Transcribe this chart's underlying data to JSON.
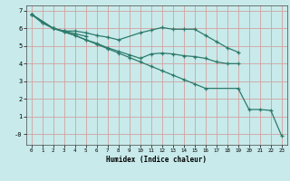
{
  "xlabel": "Humidex (Indice chaleur)",
  "xlim": [
    -0.5,
    23.5
  ],
  "ylim": [
    -0.6,
    7.3
  ],
  "yticks": [
    0,
    1,
    2,
    3,
    4,
    5,
    6,
    7
  ],
  "ytick_labels": [
    "-0",
    "1",
    "2",
    "3",
    "4",
    "5",
    "6",
    "7"
  ],
  "xticks": [
    0,
    1,
    2,
    3,
    4,
    5,
    6,
    7,
    8,
    9,
    10,
    11,
    12,
    13,
    14,
    15,
    16,
    17,
    18,
    19,
    20,
    21,
    22,
    23
  ],
  "bg_color": "#c8eaea",
  "grid_color": "#d4a0a0",
  "line_color": "#2d7a6a",
  "lines": [
    {
      "x": [
        0,
        1,
        2,
        3,
        4,
        5
      ],
      "y": [
        6.8,
        6.3,
        6.0,
        5.85,
        5.7,
        5.55
      ]
    },
    {
      "x": [
        0,
        2,
        3,
        4,
        5,
        6,
        7,
        8,
        10,
        11,
        12,
        13,
        14,
        15,
        16,
        17,
        18,
        19
      ],
      "y": [
        6.8,
        6.0,
        5.85,
        5.85,
        5.75,
        5.6,
        5.5,
        5.35,
        5.75,
        5.9,
        6.05,
        5.95,
        5.95,
        5.95,
        5.6,
        5.25,
        4.9,
        4.65
      ]
    },
    {
      "x": [
        0,
        2,
        3,
        4,
        5,
        6,
        7,
        8,
        9,
        10,
        11,
        12,
        13,
        14,
        15,
        16,
        17,
        18,
        19
      ],
      "y": [
        6.8,
        6.0,
        5.8,
        5.6,
        5.35,
        5.15,
        4.9,
        4.7,
        4.5,
        4.3,
        4.55,
        4.6,
        4.55,
        4.45,
        4.4,
        4.3,
        4.1,
        4.0,
        4.0
      ]
    },
    {
      "x": [
        0,
        1,
        2,
        3,
        4,
        5,
        6,
        7,
        8,
        9,
        10,
        11,
        12,
        13,
        14,
        15,
        16,
        19,
        20,
        21,
        22,
        23
      ],
      "y": [
        6.8,
        6.35,
        6.0,
        5.8,
        5.6,
        5.35,
        5.1,
        4.85,
        4.6,
        4.35,
        4.1,
        3.85,
        3.6,
        3.35,
        3.1,
        2.85,
        2.6,
        2.6,
        1.4,
        1.4,
        1.35,
        -0.1
      ]
    }
  ]
}
